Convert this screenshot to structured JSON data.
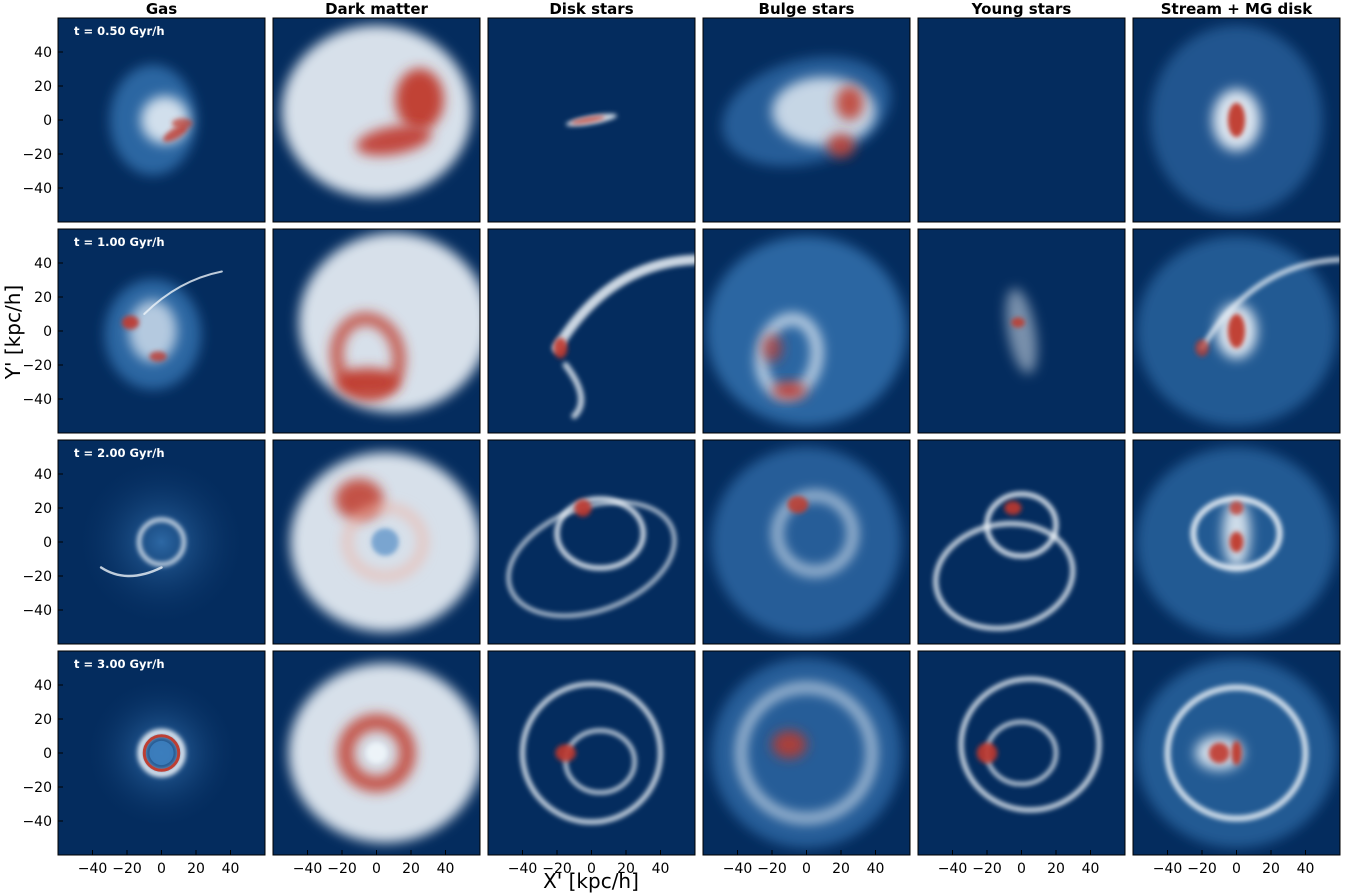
{
  "chart_data": {
    "type": "heatmap",
    "description_kind": "grid of projected density maps",
    "columns": [
      "Gas",
      "Dark matter",
      "Disk stars",
      "Bulge stars",
      "Young stars",
      "Stream + MG disk"
    ],
    "rows": [
      "t = 0.50 Gyr/h",
      "t = 1.00 Gyr/h",
      "t = 2.00 Gyr/h",
      "t = 3.00 Gyr/h"
    ],
    "xlabel": "X' [kpc/h]",
    "ylabel": "Y' [kpc/h]",
    "x_ticks": [
      -40,
      -20,
      0,
      20,
      40
    ],
    "y_ticks": [
      40,
      20,
      0,
      -20,
      -40
    ],
    "xlim": [
      -60,
      60
    ],
    "ylim": [
      -60,
      60
    ],
    "colormap": "RdBu_r",
    "colors": {
      "background": "#042c5e",
      "mid": "#3d7fbf",
      "light": "#eef4f9",
      "high": "#c0392b"
    },
    "tick_label_texts": {
      "x": [
        "−40",
        "−20",
        "0",
        "20",
        "40"
      ],
      "y": [
        "40",
        "20",
        "0",
        "−20",
        "−40"
      ]
    }
  }
}
